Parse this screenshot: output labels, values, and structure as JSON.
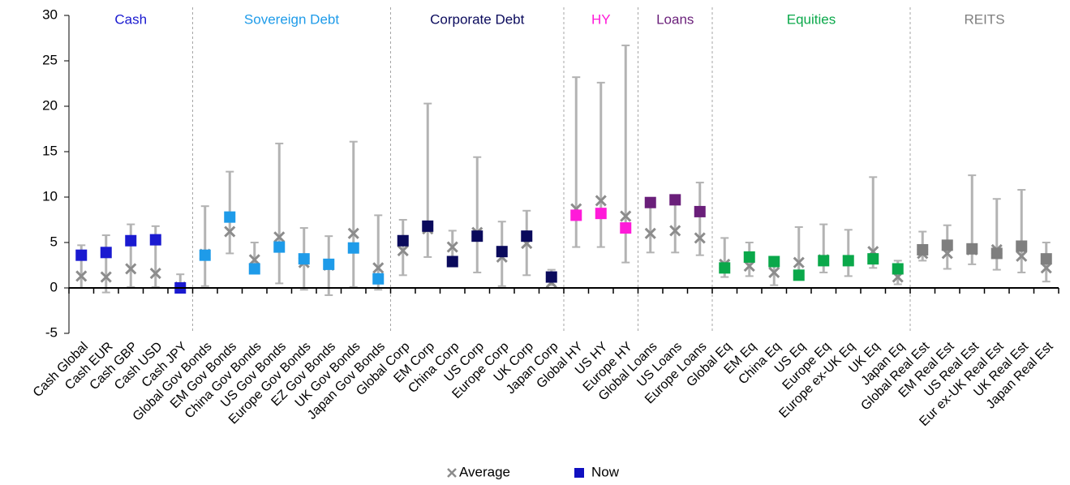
{
  "chart_data": {
    "type": "range",
    "ylim": [
      -5,
      30
    ],
    "yticks": [
      -5,
      0,
      5,
      10,
      15,
      20,
      25,
      30
    ],
    "legend": [
      {
        "name": "Average",
        "color": "#8c8c8c"
      },
      {
        "name": "Now",
        "color": "#1010c0"
      }
    ],
    "groups": [
      {
        "name": "Cash",
        "color": "#1a1ad0",
        "categories": [
          "Cash Global",
          "Cash EUR",
          "Cash GBP",
          "Cash USD",
          "Cash JPY"
        ],
        "low": [
          0,
          -0.5,
          0.1,
          0.1,
          -0.1
        ],
        "high": [
          4.7,
          5.8,
          7.0,
          6.8,
          1.5
        ],
        "average": [
          1.3,
          1.2,
          2.1,
          1.6,
          0.1
        ],
        "now": [
          3.6,
          3.9,
          5.2,
          5.3,
          0.0
        ]
      },
      {
        "name": "Sovereign Debt",
        "color": "#1e9be9",
        "categories": [
          "Global Gov Bonds",
          "EM Gov Bonds",
          "China Gov Bonds",
          "US Gov Bonds",
          "Europe Gov Bonds",
          "EZ Gov Bonds",
          "UK Gov Bonds",
          "Japan Gov Bonds"
        ],
        "low": [
          0.2,
          3.8,
          1.8,
          0.5,
          -0.2,
          -0.8,
          0.1,
          -0.2
        ],
        "high": [
          9.0,
          12.8,
          5.0,
          15.9,
          6.6,
          5.7,
          16.1,
          8.0
        ],
        "average": [
          3.7,
          6.2,
          3.1,
          5.6,
          2.8,
          2.5,
          6.0,
          2.2
        ],
        "now": [
          3.6,
          7.8,
          2.1,
          4.5,
          3.2,
          2.6,
          4.4,
          1.0
        ]
      },
      {
        "name": "Corporate Debt",
        "color": "#0a0a5c",
        "categories": [
          "Global Corp",
          "EM Corp",
          "China Corp",
          "US Corp",
          "Europe Corp",
          "UK Corp",
          "Japan Corp"
        ],
        "low": [
          1.4,
          3.4,
          2.6,
          1.7,
          0.2,
          1.4,
          0.3
        ],
        "high": [
          7.5,
          20.3,
          6.3,
          14.4,
          7.3,
          8.5,
          2.0
        ],
        "average": [
          4.1,
          6.5,
          4.5,
          6.1,
          3.4,
          4.9,
          0.6
        ],
        "now": [
          5.2,
          6.8,
          2.9,
          5.7,
          4.0,
          5.7,
          1.2
        ]
      },
      {
        "name": "HY",
        "color": "#ff1ad9",
        "categories": [
          "Global HY",
          "US HY",
          "Europe HY"
        ],
        "low": [
          4.5,
          4.5,
          2.8
        ],
        "high": [
          23.2,
          22.6,
          26.7
        ],
        "average": [
          8.7,
          9.6,
          7.9
        ],
        "now": [
          8.0,
          8.2,
          6.6
        ]
      },
      {
        "name": "Loans",
        "color": "#6a1f7a",
        "categories": [
          "Global Loans",
          "US Loans",
          "Europe Loans"
        ],
        "low": [
          3.9,
          3.9,
          3.6
        ],
        "high": [
          9.7,
          10.2,
          11.6
        ],
        "average": [
          6.0,
          6.3,
          5.5
        ],
        "now": [
          9.4,
          9.7,
          8.4
        ]
      },
      {
        "name": "Equities",
        "color": "#0aa84a",
        "categories": [
          "Global Eq",
          "EM Eq",
          "China Eq",
          "US Eq",
          "Europe Eq",
          "Europe ex-UK Eq",
          "UK Eq",
          "Japan Eq"
        ],
        "low": [
          1.2,
          1.3,
          0.3,
          1.0,
          1.7,
          1.3,
          2.2,
          0.4
        ],
        "high": [
          5.5,
          5.0,
          3.0,
          6.7,
          7.0,
          6.4,
          12.2,
          3.0
        ],
        "average": [
          2.6,
          2.4,
          1.7,
          2.8,
          3.1,
          3.0,
          4.0,
          1.2
        ],
        "now": [
          2.2,
          3.4,
          2.9,
          1.4,
          3.0,
          3.0,
          3.2,
          2.1
        ]
      },
      {
        "name": "REITS",
        "color": "#7f7f7f",
        "categories": [
          "Global Real Est",
          "EM Real Est",
          "US Real Est",
          "Eur ex-UK Real Est",
          "UK Real Est",
          "Japan Real Est"
        ],
        "low": [
          3.0,
          2.1,
          2.6,
          2.0,
          1.7,
          0.7
        ],
        "high": [
          6.2,
          6.9,
          12.4,
          9.8,
          10.8,
          5.0
        ],
        "average": [
          3.8,
          3.8,
          4.2,
          4.2,
          3.5,
          2.2
        ],
        "now": [
          4.2,
          4.7,
          4.3,
          3.8,
          4.6,
          3.2
        ]
      }
    ]
  }
}
